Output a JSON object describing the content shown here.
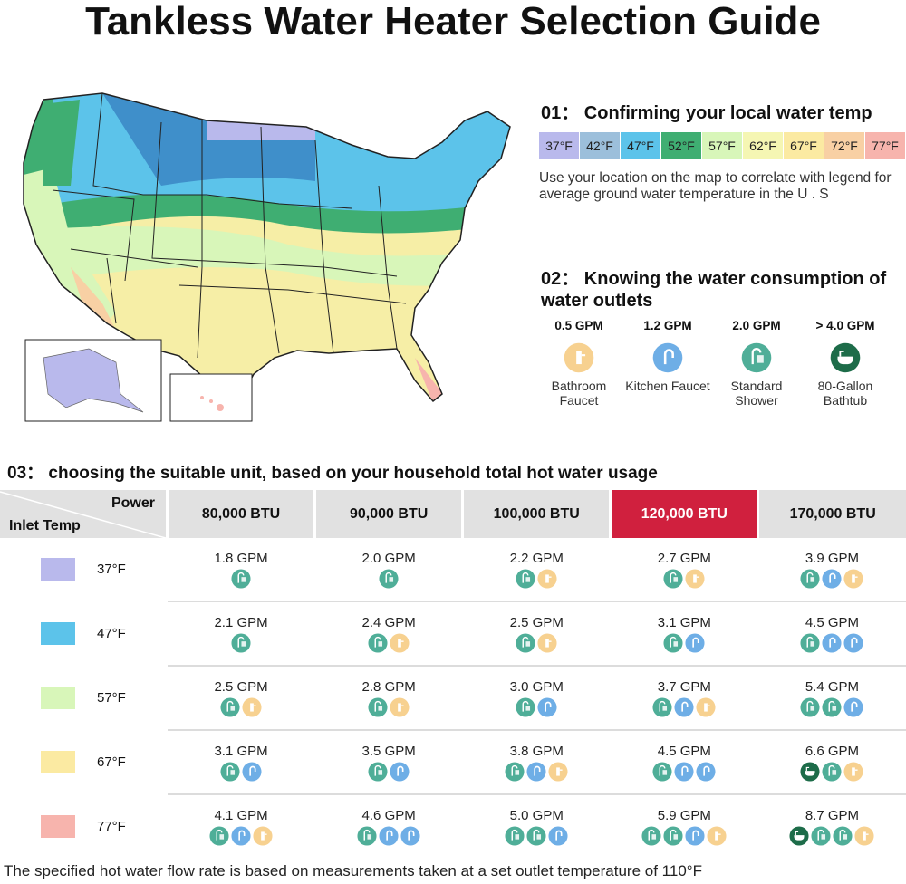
{
  "title": "Tankless Water Heater Selection Guide",
  "section1": {
    "heading": "01： Confirming your local water temp",
    "legend": [
      {
        "label": "37°F",
        "color": "#b9b9ec"
      },
      {
        "label": "42°F",
        "color": "#9cbfdb"
      },
      {
        "label": "47°F",
        "color": "#5cc3ea"
      },
      {
        "label": "52°F",
        "color": "#3fae72"
      },
      {
        "label": "57°F",
        "color": "#d8f6b9"
      },
      {
        "label": "62°F",
        "color": "#f5f6b3"
      },
      {
        "label": "67°F",
        "color": "#fbeaa2"
      },
      {
        "label": "72°F",
        "color": "#f8d0a4"
      },
      {
        "label": "77°F",
        "color": "#f7b4ad"
      }
    ],
    "description": "Use your location on the map to correlate with legend for average ground water temperature in the U . S"
  },
  "section2": {
    "heading": "02： Knowing the water consumption of water outlets",
    "outlets": [
      {
        "gpm": "0.5 GPM",
        "label": "Bathroom Faucet",
        "icon": "bathroom-faucet"
      },
      {
        "gpm": "1.2 GPM",
        "label": "Kitchen Faucet",
        "icon": "kitchen-faucet"
      },
      {
        "gpm": "2.0 GPM",
        "label": "Standard Shower",
        "icon": "shower"
      },
      {
        "gpm": "> 4.0 GPM",
        "label": "80-Gallon Bathtub",
        "icon": "bathtub"
      }
    ]
  },
  "icon_colors": {
    "shower": "#4fae98",
    "kitchen-faucet": "#6eaee6",
    "bathroom-faucet": "#f7d190",
    "bathtub": "#1d6c49"
  },
  "section3": {
    "heading": "03： choosing the suitable unit, based on your household total hot water usage",
    "corner_power": "Power",
    "corner_inlet": "Inlet Temp",
    "highlight_color": "#d0203e",
    "columns": [
      {
        "label": "80,000 BTU",
        "highlight": false
      },
      {
        "label": "90,000 BTU",
        "highlight": false
      },
      {
        "label": "100,000 BTU",
        "highlight": false
      },
      {
        "label": "120,000 BTU",
        "highlight": true
      },
      {
        "label": "170,000 BTU",
        "highlight": false
      }
    ],
    "rows": [
      {
        "temp": "37°F",
        "color": "#b9b9ec",
        "cells": [
          {
            "gpm": "1.8 GPM",
            "icons": [
              "shower"
            ]
          },
          {
            "gpm": "2.0 GPM",
            "icons": [
              "shower"
            ]
          },
          {
            "gpm": "2.2 GPM",
            "icons": [
              "shower",
              "bathroom-faucet"
            ]
          },
          {
            "gpm": "2.7 GPM",
            "icons": [
              "shower",
              "bathroom-faucet"
            ]
          },
          {
            "gpm": "3.9 GPM",
            "icons": [
              "shower",
              "kitchen-faucet",
              "bathroom-faucet"
            ]
          }
        ]
      },
      {
        "temp": "47°F",
        "color": "#5cc3ea",
        "cells": [
          {
            "gpm": "2.1 GPM",
            "icons": [
              "shower"
            ]
          },
          {
            "gpm": "2.4 GPM",
            "icons": [
              "shower",
              "bathroom-faucet"
            ]
          },
          {
            "gpm": "2.5 GPM",
            "icons": [
              "shower",
              "bathroom-faucet"
            ]
          },
          {
            "gpm": "3.1 GPM",
            "icons": [
              "shower",
              "kitchen-faucet"
            ]
          },
          {
            "gpm": "4.5 GPM",
            "icons": [
              "shower",
              "kitchen-faucet",
              "kitchen-faucet"
            ]
          }
        ]
      },
      {
        "temp": "57°F",
        "color": "#d8f6b9",
        "cells": [
          {
            "gpm": "2.5 GPM",
            "icons": [
              "shower",
              "bathroom-faucet"
            ]
          },
          {
            "gpm": "2.8 GPM",
            "icons": [
              "shower",
              "bathroom-faucet"
            ]
          },
          {
            "gpm": "3.0 GPM",
            "icons": [
              "shower",
              "kitchen-faucet"
            ]
          },
          {
            "gpm": "3.7 GPM",
            "icons": [
              "shower",
              "kitchen-faucet",
              "bathroom-faucet"
            ]
          },
          {
            "gpm": "5.4 GPM",
            "icons": [
              "shower",
              "shower",
              "kitchen-faucet"
            ]
          }
        ]
      },
      {
        "temp": "67°F",
        "color": "#fbeaa2",
        "cells": [
          {
            "gpm": "3.1 GPM",
            "icons": [
              "shower",
              "kitchen-faucet"
            ]
          },
          {
            "gpm": "3.5 GPM",
            "icons": [
              "shower",
              "kitchen-faucet"
            ]
          },
          {
            "gpm": "3.8 GPM",
            "icons": [
              "shower",
              "kitchen-faucet",
              "bathroom-faucet"
            ]
          },
          {
            "gpm": "4.5 GPM",
            "icons": [
              "shower",
              "kitchen-faucet",
              "kitchen-faucet"
            ]
          },
          {
            "gpm": "6.6 GPM",
            "icons": [
              "bathtub",
              "shower",
              "bathroom-faucet"
            ]
          }
        ]
      },
      {
        "temp": "77°F",
        "color": "#f7b4ad",
        "cells": [
          {
            "gpm": "4.1 GPM",
            "icons": [
              "shower",
              "kitchen-faucet",
              "bathroom-faucet"
            ]
          },
          {
            "gpm": "4.6 GPM",
            "icons": [
              "shower",
              "kitchen-faucet",
              "kitchen-faucet"
            ]
          },
          {
            "gpm": "5.0 GPM",
            "icons": [
              "shower",
              "shower",
              "kitchen-faucet"
            ]
          },
          {
            "gpm": "5.9 GPM",
            "icons": [
              "shower",
              "shower",
              "kitchen-faucet",
              "bathroom-faucet"
            ]
          },
          {
            "gpm": "8.7 GPM",
            "icons": [
              "bathtub",
              "shower",
              "shower",
              "bathroom-faucet"
            ]
          }
        ]
      }
    ]
  },
  "footer": "The specified hot water flow rate is based on measurements taken at a set outlet temperature of 110°F"
}
